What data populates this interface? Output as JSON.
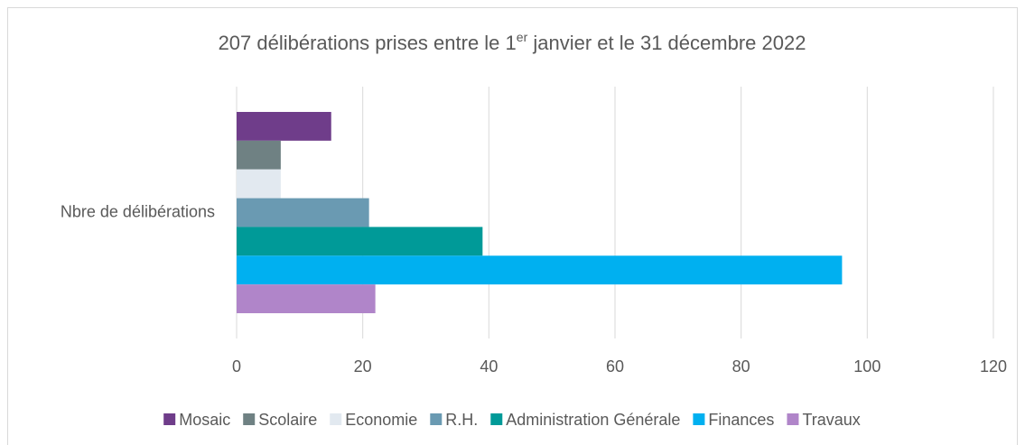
{
  "chart_data": {
    "type": "hbar",
    "title": [
      "207 délibérations prises entre le 1",
      "er",
      " janvier et le 31 décembre 2022"
    ],
    "categories": [
      "Nbre de délibérations"
    ],
    "series": [
      {
        "name": "Mosaic",
        "color": "#6f3d8a",
        "values": [
          15
        ]
      },
      {
        "name": "Scolaire",
        "color": "#6f8183",
        "values": [
          7
        ]
      },
      {
        "name": "Economie",
        "color": "#e2e9f0",
        "values": [
          7
        ]
      },
      {
        "name": "R.H.",
        "color": "#6a9ab2",
        "values": [
          21
        ]
      },
      {
        "name": "Administration Générale",
        "color": "#009a98",
        "values": [
          39
        ]
      },
      {
        "name": "Finances",
        "color": "#00b0f0",
        "values": [
          96
        ]
      },
      {
        "name": "Travaux",
        "color": "#b085c9",
        "values": [
          22
        ]
      }
    ],
    "xlim": [
      0,
      120
    ],
    "xticks": [
      0,
      20,
      40,
      60,
      80,
      100,
      120
    ],
    "grid": true,
    "legend": "bottom"
  }
}
